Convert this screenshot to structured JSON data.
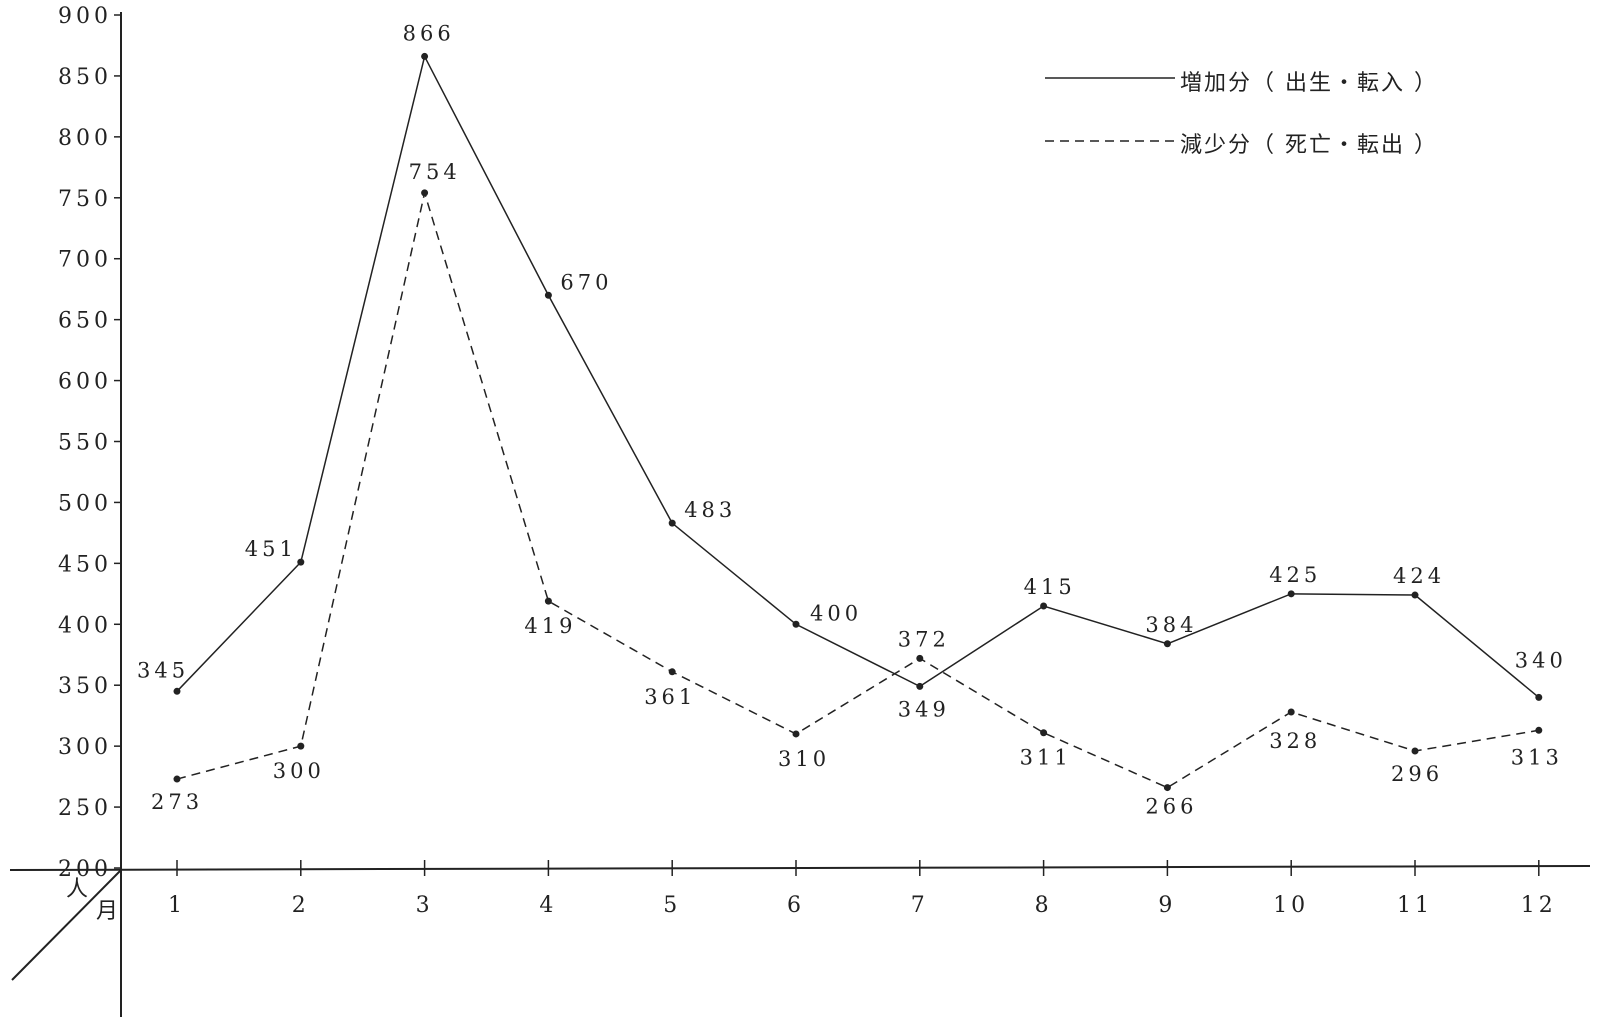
{
  "chart_data": {
    "type": "line",
    "categories": [
      "1",
      "2",
      "3",
      "4",
      "5",
      "6",
      "7",
      "8",
      "9",
      "10",
      "11",
      "12"
    ],
    "series": [
      {
        "name": "増加分（出生・転入）",
        "style": "solid",
        "values": [
          345,
          451,
          866,
          670,
          483,
          400,
          349,
          415,
          384,
          425,
          424,
          340
        ]
      },
      {
        "name": "減少分（死亡・転出）",
        "style": "dashed",
        "values": [
          273,
          300,
          754,
          419,
          361,
          310,
          372,
          311,
          266,
          328,
          296,
          313
        ]
      }
    ],
    "y_ticks": [
      "900",
      "850",
      "800",
      "750",
      "700",
      "650",
      "600",
      "550",
      "500",
      "450",
      "400",
      "350",
      "300",
      "250",
      "200"
    ],
    "ylim": [
      200,
      900
    ],
    "corner_labels": {
      "y_unit": "人",
      "x_unit": "月"
    },
    "legend": [
      {
        "text": "増加分（ 出生・転入 ）",
        "style": "solid"
      },
      {
        "text": "減少分（ 死亡・転出 ）",
        "style": "dashed"
      }
    ],
    "legend_position": "top-right",
    "grid": false
  },
  "colors": {
    "line": "#222222",
    "background": "#ffffff"
  }
}
